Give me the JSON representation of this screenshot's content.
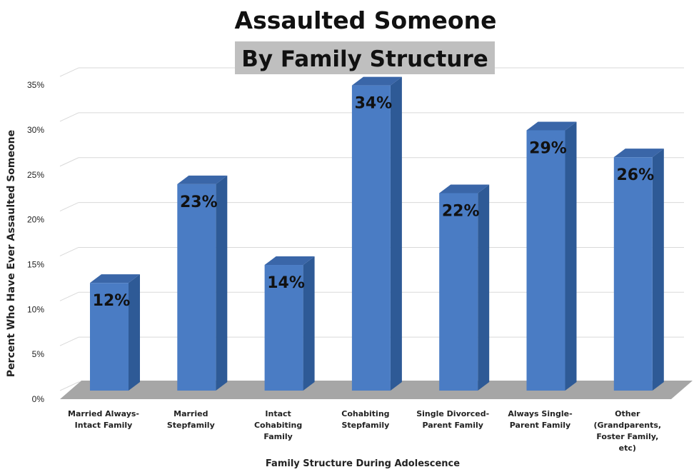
{
  "chart_data": {
    "type": "bar",
    "title": "Assaulted Someone",
    "subtitle": "By Family Structure",
    "xlabel": "Family Structure During Adolescence",
    "ylabel": "Percent Who Have Ever Assaulted Someone",
    "ylim": [
      0,
      35
    ],
    "yticks": [
      "0%",
      "5%",
      "10%",
      "15%",
      "20%",
      "25%",
      "30%",
      "35%"
    ],
    "grid": true,
    "style": "3d-column",
    "categories": [
      [
        "Married Always-",
        "Intact Family"
      ],
      [
        "Married",
        "Stepfamily"
      ],
      [
        "Intact",
        "Cohabiting",
        "Family"
      ],
      [
        "Cohabiting",
        "Stepfamily"
      ],
      [
        "Single Divorced-",
        "Parent Family"
      ],
      [
        "Always Single-",
        "Parent Family"
      ],
      [
        "Other",
        "(Grandparents,",
        "Foster Family,",
        "etc)"
      ]
    ],
    "values": [
      12,
      23,
      14,
      34,
      22,
      29,
      26
    ],
    "data_labels": [
      "12%",
      "23%",
      "14%",
      "34%",
      "22%",
      "29%",
      "26%"
    ]
  },
  "colors": {
    "bar_front": "#4a7cc4",
    "bar_side": "#2e5a96",
    "bar_top": "#3a66a8",
    "floor": "#a6a6a6",
    "subtitle_bg": "#bfbfbf",
    "grid": "#d9d9d9"
  }
}
